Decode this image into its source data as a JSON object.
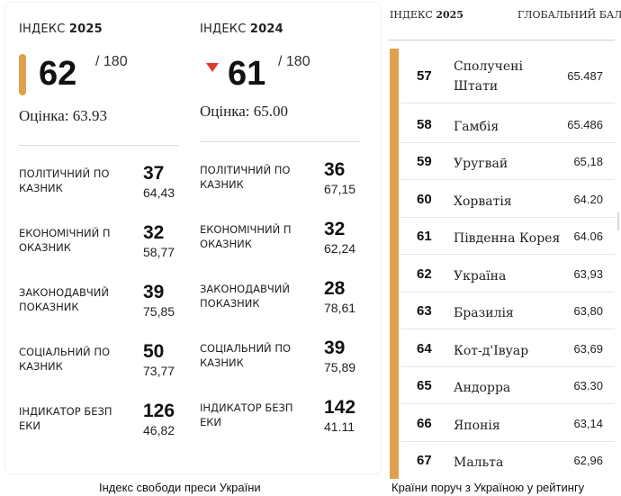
{
  "index2025": {
    "label": "ІНДЕКС",
    "year": "2025",
    "rank": "62",
    "out_of": "/ 180",
    "score": "Оцінка: 63.93",
    "indicators": [
      {
        "label": "ПОЛІТИЧНИЙ ПОКАЗНИК",
        "rank": "37",
        "score": "64,43"
      },
      {
        "label": "ЕКОНОМІЧНИЙ ПОКАЗНИК",
        "rank": "32",
        "score": "58,77"
      },
      {
        "label": "ЗАКОНОДАВЧИЙ ПОКАЗНИК",
        "rank": "39",
        "score": "75,85"
      },
      {
        "label": "СОЦІАЛЬНИЙ ПОКАЗНИК",
        "rank": "50",
        "score": "73,77"
      },
      {
        "label": "ІНДИКАТОР БЕЗПЕКИ",
        "rank": "126",
        "score": "46,82"
      }
    ]
  },
  "index2024": {
    "label": "ІНДЕКС",
    "year": "2024",
    "rank": "61",
    "out_of": "/ 180",
    "score": "Оцінка: 65.00",
    "indicators": [
      {
        "label": "ПОЛІТИЧНИЙ ПОКАЗНИК",
        "rank": "36",
        "score": "67,15"
      },
      {
        "label": "ЕКОНОМІЧНИЙ ПОКАЗНИК",
        "rank": "32",
        "score": "62,24"
      },
      {
        "label": "ЗАКОНОДАВЧИЙ ПОКАЗНИК",
        "rank": "28",
        "score": "78,61"
      },
      {
        "label": "СОЦІАЛЬНИЙ ПОКАЗНИК",
        "rank": "39",
        "score": "75,89"
      },
      {
        "label": "ІНДИКАТОР БЕЗПЕКИ",
        "rank": "142",
        "score": "41.11"
      }
    ]
  },
  "ranking": {
    "header_left_label": "ІНДЕКС",
    "header_left_year": "2025",
    "header_right": "ГЛОБАЛЬНИЙ БАЛ",
    "rows": [
      {
        "rank": "57",
        "country": "Сполучені Штати",
        "score": "65.487"
      },
      {
        "rank": "58",
        "country": "Гамбія",
        "score": "65.486"
      },
      {
        "rank": "59",
        "country": "Уругвай",
        "score": "65,18"
      },
      {
        "rank": "60",
        "country": "Хорватія",
        "score": "64.20"
      },
      {
        "rank": "61",
        "country": "Південна Корея",
        "score": "64.06"
      },
      {
        "rank": "62",
        "country": "Україна",
        "score": "63,93"
      },
      {
        "rank": "63",
        "country": "Бразилія",
        "score": "63,80"
      },
      {
        "rank": "64",
        "country": "Кот-д'Івуар",
        "score": "63,69"
      },
      {
        "rank": "65",
        "country": "Андорра",
        "score": "63.30"
      },
      {
        "rank": "66",
        "country": "Японія",
        "score": "63,14"
      },
      {
        "rank": "67",
        "country": "Мальта",
        "score": "62,96"
      }
    ]
  },
  "captions": {
    "left": "Індекс свободи преси України",
    "right": "Країни поруч з Україною у рейтингу"
  },
  "colors": {
    "accent": "#e0a14e",
    "down_arrow": "#e03a2b"
  },
  "icons": {
    "rank_marker": "orange-bar",
    "trend": "down-triangle-icon"
  }
}
